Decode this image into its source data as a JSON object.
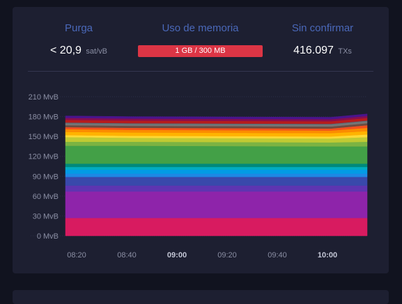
{
  "stats": {
    "fees": {
      "title": "Purga",
      "value": "< 20,9",
      "unit": "sat/vB"
    },
    "memory": {
      "title": "Uso de memoria",
      "bar_text": "1 GB / 300 MB",
      "bar_fill": 1.0,
      "bar_color": "#dc3545"
    },
    "unconfirmed": {
      "title": "Sin confirmar",
      "value": "416.097",
      "unit": "TXs"
    }
  },
  "chart_data": {
    "type": "area",
    "stacked": true,
    "ylim": [
      0,
      210
    ],
    "yticks": [
      {
        "value": 0,
        "label": "0 MvB"
      },
      {
        "value": 30,
        "label": "30 MvB"
      },
      {
        "value": 60,
        "label": "60 MvB"
      },
      {
        "value": 90,
        "label": "90 MvB"
      },
      {
        "value": 120,
        "label": "120 MvB"
      },
      {
        "value": 150,
        "label": "150 MvB"
      },
      {
        "value": 180,
        "label": "180 MvB"
      },
      {
        "value": 210,
        "label": "210 MvB"
      }
    ],
    "x": [
      "08:13",
      "08:40",
      "10:03",
      "10:18"
    ],
    "xticks": [
      {
        "label": "08:20",
        "bold": false
      },
      {
        "label": "08:40",
        "bold": false
      },
      {
        "label": "09:00",
        "bold": true
      },
      {
        "label": "09:20",
        "bold": false
      },
      {
        "label": "09:40",
        "bold": false
      },
      {
        "label": "10:00",
        "bold": true
      }
    ],
    "series": [
      {
        "color": "#d81b60",
        "values": [
          27,
          27,
          27,
          27
        ]
      },
      {
        "color": "#8e24aa",
        "values": [
          40,
          40,
          40,
          40
        ]
      },
      {
        "color": "#5e35b1",
        "values": [
          9,
          9,
          9,
          9
        ]
      },
      {
        "color": "#3949ab",
        "values": [
          13,
          13,
          13,
          13
        ]
      },
      {
        "color": "#1e88e5",
        "values": [
          5,
          5,
          5,
          5
        ]
      },
      {
        "color": "#039be5",
        "values": [
          6,
          6,
          6,
          6
        ]
      },
      {
        "color": "#00acc1",
        "values": [
          4,
          4,
          4,
          4
        ]
      },
      {
        "color": "#00897b",
        "values": [
          5,
          5,
          5,
          5
        ]
      },
      {
        "color": "#43a047",
        "values": [
          27,
          27,
          26,
          26
        ]
      },
      {
        "color": "#7cb342",
        "values": [
          6,
          6,
          6,
          7
        ]
      },
      {
        "color": "#c0ca33",
        "values": [
          7,
          6,
          6,
          7
        ]
      },
      {
        "color": "#fdd835",
        "values": [
          3,
          3,
          3,
          4
        ]
      },
      {
        "color": "#ffb300",
        "values": [
          5,
          5,
          5,
          5
        ]
      },
      {
        "color": "#fb8c00",
        "values": [
          4,
          4,
          4,
          5
        ]
      },
      {
        "color": "#f4511e",
        "values": [
          3,
          3,
          3,
          4
        ]
      },
      {
        "color": "#6d4c41",
        "values": [
          3,
          3,
          3,
          3
        ]
      },
      {
        "color": "#757575",
        "values": [
          3,
          3,
          3,
          3
        ]
      },
      {
        "color": "#546e7a",
        "values": [
          1,
          1,
          1,
          1
        ]
      },
      {
        "color": "#b71c1c",
        "values": [
          4,
          4,
          4,
          4
        ]
      },
      {
        "color": "#880e4f",
        "values": [
          3,
          3,
          3,
          3
        ]
      },
      {
        "color": "#4a148c",
        "values": [
          3,
          3,
          3,
          3
        ]
      }
    ]
  }
}
